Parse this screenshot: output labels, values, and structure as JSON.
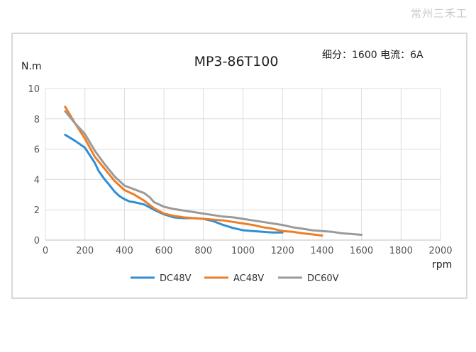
{
  "watermark": "常州三禾工",
  "chart_data": {
    "type": "line",
    "title": "MP3-86T100",
    "subtitle": "细分：1600 电流：6A",
    "ylabel": "N.m",
    "xlabel": "rpm",
    "xlim": [
      0,
      2000
    ],
    "ylim": [
      0,
      10
    ],
    "xticks": [
      0,
      200,
      400,
      600,
      800,
      1000,
      1200,
      1400,
      1600,
      1800,
      2000
    ],
    "yticks": [
      0,
      2,
      4,
      6,
      8,
      10
    ],
    "grid": "vertical and horizontal",
    "legend_position": "bottom",
    "series": [
      {
        "name": "DC48V",
        "color": "#2e8fd6",
        "x": [
          100,
          150,
          200,
          250,
          270,
          300,
          320,
          350,
          375,
          400,
          425,
          450,
          500,
          550,
          600,
          650,
          700,
          750,
          800,
          850,
          900,
          950,
          1000,
          1050,
          1100,
          1150,
          1200
        ],
        "y": [
          6.95,
          6.55,
          6.1,
          5.1,
          4.55,
          4.0,
          3.7,
          3.2,
          2.9,
          2.7,
          2.55,
          2.5,
          2.35,
          2.0,
          1.7,
          1.5,
          1.45,
          1.45,
          1.4,
          1.25,
          1.0,
          0.8,
          0.65,
          0.6,
          0.55,
          0.5,
          0.5
        ]
      },
      {
        "name": "AC48V",
        "color": "#ef7d24",
        "x": [
          100,
          150,
          200,
          250,
          300,
          350,
          400,
          450,
          500,
          550,
          600,
          650,
          700,
          750,
          800,
          850,
          900,
          950,
          1000,
          1050,
          1100,
          1150,
          1200,
          1250,
          1300,
          1350,
          1400
        ],
        "y": [
          8.8,
          7.7,
          6.7,
          5.5,
          4.7,
          3.9,
          3.3,
          3.0,
          2.6,
          2.1,
          1.75,
          1.6,
          1.5,
          1.45,
          1.4,
          1.35,
          1.3,
          1.2,
          1.1,
          1.0,
          0.85,
          0.75,
          0.6,
          0.55,
          0.45,
          0.38,
          0.3
        ]
      },
      {
        "name": "DC60V",
        "color": "#9a9a9a",
        "x": [
          100,
          150,
          200,
          250,
          300,
          350,
          400,
          450,
          500,
          530,
          550,
          600,
          650,
          700,
          750,
          800,
          850,
          900,
          950,
          1000,
          1050,
          1100,
          1150,
          1200,
          1250,
          1300,
          1350,
          1400,
          1450,
          1500,
          1550,
          1600
        ],
        "y": [
          8.5,
          7.7,
          7.0,
          5.9,
          5.0,
          4.2,
          3.6,
          3.35,
          3.1,
          2.8,
          2.5,
          2.2,
          2.05,
          1.95,
          1.85,
          1.75,
          1.65,
          1.55,
          1.5,
          1.4,
          1.3,
          1.2,
          1.1,
          1.0,
          0.85,
          0.75,
          0.65,
          0.6,
          0.55,
          0.45,
          0.4,
          0.35
        ]
      }
    ]
  }
}
